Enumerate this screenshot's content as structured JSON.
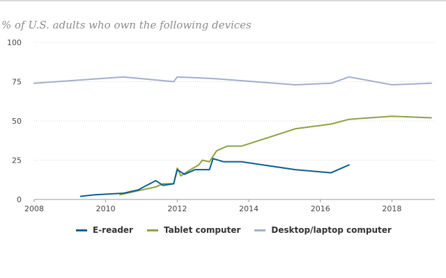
{
  "chart_data": {
    "type": "line",
    "title": "",
    "subtitle": "% of U.S. adults who own the following devices",
    "xlabel": "",
    "ylabel": "",
    "xlim": [
      2008,
      2019.2
    ],
    "ylim": [
      0,
      100
    ],
    "x_ticks": [
      2008,
      2010,
      2012,
      2014,
      2016,
      2018
    ],
    "y_ticks": [
      0,
      25,
      50,
      75,
      100
    ],
    "grid": "horizontal dotted",
    "legend_position": "bottom",
    "series": [
      {
        "name": "E-reader",
        "color": "#0b5e8e",
        "points": [
          [
            2009.3,
            2
          ],
          [
            2009.7,
            3
          ],
          [
            2010.1,
            3.5
          ],
          [
            2010.5,
            4
          ],
          [
            2010.9,
            6
          ],
          [
            2011.4,
            12
          ],
          [
            2011.6,
            9
          ],
          [
            2011.9,
            10
          ],
          [
            2012.0,
            19
          ],
          [
            2012.2,
            16
          ],
          [
            2012.5,
            19
          ],
          [
            2012.9,
            19
          ],
          [
            2013.0,
            26
          ],
          [
            2013.3,
            24
          ],
          [
            2013.8,
            24
          ],
          [
            2015.3,
            19
          ],
          [
            2016.3,
            17
          ],
          [
            2016.8,
            22
          ]
        ]
      },
      {
        "name": "Tablet computer",
        "color": "#8ca23f",
        "points": [
          [
            2010.4,
            3
          ],
          [
            2010.8,
            5
          ],
          [
            2011.4,
            8
          ],
          [
            2011.6,
            10
          ],
          [
            2011.9,
            10
          ],
          [
            2012.0,
            20
          ],
          [
            2012.1,
            15
          ],
          [
            2012.3,
            18
          ],
          [
            2012.6,
            22
          ],
          [
            2012.7,
            25
          ],
          [
            2012.9,
            24
          ],
          [
            2013.1,
            31
          ],
          [
            2013.4,
            34
          ],
          [
            2013.8,
            34
          ],
          [
            2015.3,
            45
          ],
          [
            2016.3,
            48
          ],
          [
            2016.8,
            51
          ],
          [
            2018.0,
            53
          ],
          [
            2019.1,
            52
          ]
        ]
      },
      {
        "name": "Desktop/laptop computer",
        "color": "#a3aecd",
        "points": [
          [
            2008.0,
            74
          ],
          [
            2010.5,
            78
          ],
          [
            2011.9,
            75
          ],
          [
            2012.0,
            78
          ],
          [
            2013.0,
            77
          ],
          [
            2015.3,
            73
          ],
          [
            2016.3,
            74
          ],
          [
            2016.8,
            78
          ],
          [
            2018.0,
            73
          ],
          [
            2019.1,
            74
          ]
        ]
      }
    ]
  }
}
